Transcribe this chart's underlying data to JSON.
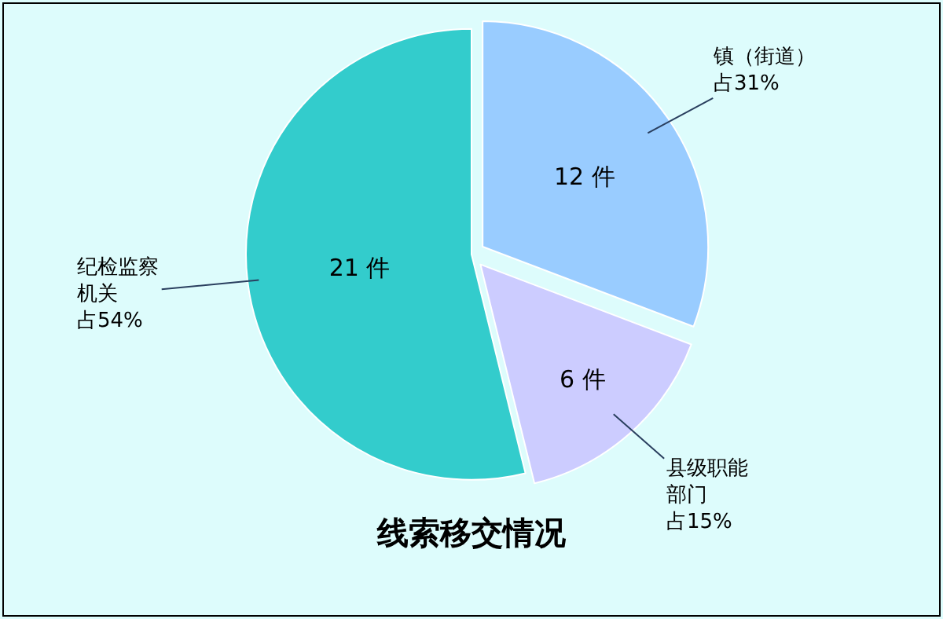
{
  "chart_data": {
    "type": "pie",
    "title": "线索移交情况",
    "categories": [
      "镇（街道）",
      "县级职能部门",
      "纪检监察机关"
    ],
    "annotations": [
      "占31%",
      "占15%",
      "占54%"
    ],
    "values": [
      12,
      6,
      21
    ],
    "value_labels": [
      "12 件",
      "6 件",
      "21 件"
    ],
    "colors": [
      "#99ccff",
      "#ccccff",
      "#33cccc"
    ],
    "legend": false
  }
}
